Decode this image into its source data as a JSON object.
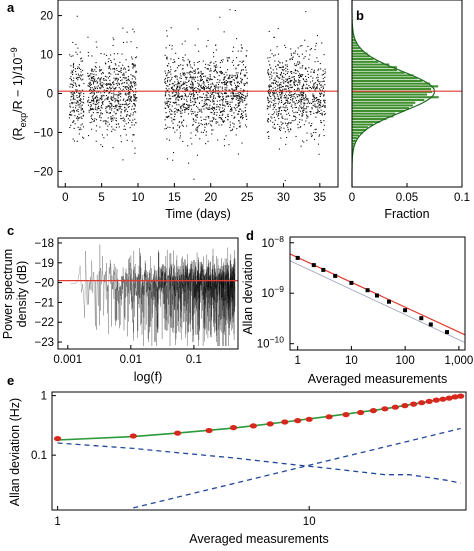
{
  "figure": {
    "panel_labels": [
      "a",
      "b",
      "c",
      "d",
      "e"
    ]
  },
  "colors": {
    "reference_line": "#e03a2f",
    "histogram": "#3f8f2e",
    "fit": "#2b9a3a",
    "points_e": "#d8281d",
    "dashed": "#24489a",
    "scatter": "#111111"
  },
  "chart_data": [
    {
      "panel": "a",
      "type": "scatter",
      "title": "",
      "xlabel": "Time (days)",
      "ylabel": "(R_exp/R − 1)/10⁻⁹",
      "ylabel_parts": [
        "(R",
        "exp",
        "/R − 1)/10",
        "−9"
      ],
      "xlim": [
        -1,
        37.5
      ],
      "ylim": [
        -24,
        24
      ],
      "xticks": [
        0,
        5,
        10,
        15,
        20,
        25,
        30,
        35
      ],
      "xtick_labels": [
        "0",
        "5",
        "10",
        "15",
        "20",
        "25",
        "30",
        "35"
      ],
      "yticks": [
        20,
        10,
        0,
        -10,
        -20
      ],
      "ytick_labels": [
        "20",
        "10",
        "0",
        "−10",
        "−20"
      ],
      "data_segments_days": [
        [
          0.5,
          2.5
        ],
        [
          3.0,
          9.8
        ],
        [
          13.6,
          25.0
        ],
        [
          27.7,
          35.7
        ]
      ],
      "points_per_day": 240,
      "distribution": {
        "mean": 0,
        "sd": 5
      },
      "reference_line_y": 0.6
    },
    {
      "panel": "b",
      "type": "bar",
      "orientation": "horizontal histogram",
      "xlabel": "Fraction",
      "xlim": [
        0,
        0.1
      ],
      "ylim": [
        -24,
        24
      ],
      "xticks": [
        0,
        0.05,
        0.1
      ],
      "xtick_labels": [
        "0",
        "0.05",
        "0.1"
      ],
      "bins": {
        "start": -21,
        "width": 0.7,
        "count": 60,
        "peak_fraction": 0.075,
        "sd": 5.2,
        "center": 0.5
      },
      "fit": "gaussian"
    },
    {
      "panel": "c",
      "type": "line",
      "xlabel": "log(f)",
      "ylabel": "Power spectrum density (dB)",
      "ylabel_lines": [
        "Power spectrum",
        "density (dB)"
      ],
      "xscale": "log",
      "xlim": [
        0.0007,
        0.5
      ],
      "ylim": [
        -23.35,
        -17.75
      ],
      "xticks": [
        0.001,
        0.01,
        0.1
      ],
      "xtick_labels": [
        "0.001",
        "0.01",
        "0.1"
      ],
      "yticks": [
        -18,
        -19,
        -20,
        -21,
        -22,
        -23
      ],
      "ytick_labels": [
        "−18",
        "−19",
        "−20",
        "−21",
        "−22",
        "−23"
      ],
      "mean_level_db": -19.9,
      "noise_floor_db": -23.2,
      "frequency_range": [
        0.0011,
        0.45
      ]
    },
    {
      "panel": "d",
      "type": "scatter",
      "xlabel": "Averaged measurements",
      "ylabel": "Allan deviation",
      "xscale": "log",
      "yscale": "log",
      "xlim": [
        0.72,
        1300
      ],
      "ylim": [
        7.5e-11,
        1.3e-08
      ],
      "xticks": [
        1,
        10,
        100,
        1000
      ],
      "xtick_labels": [
        "1",
        "10",
        "100",
        "1,000"
      ],
      "yticks": [
        1e-08,
        1e-09,
        1e-10
      ],
      "ytick_labels": [
        [
          "10",
          "−8"
        ],
        [
          "10",
          "−9"
        ],
        [
          "10",
          "−10"
        ]
      ],
      "x": [
        1,
        2,
        3,
        5,
        10,
        20,
        30,
        50,
        100,
        200,
        300,
        600
      ],
      "y": [
        5e-09,
        3.6e-09,
        2.9e-09,
        2.2e-09,
        1.6e-09,
        1.15e-09,
        9e-10,
        6.8e-10,
        4.6e-10,
        3.2e-10,
        2.4e-10,
        1.7e-10
      ],
      "fit_line": {
        "x": [
          0.72,
          1300
        ],
        "y": [
          6e-09,
          1.5e-10
        ]
      },
      "lower_line": {
        "x": [
          0.72,
          1300
        ],
        "y": [
          4.4e-09,
          1.05e-10
        ]
      }
    },
    {
      "panel": "e",
      "type": "line",
      "xlabel": "Averaged measurements",
      "ylabel": "Allan deviation (Hz)",
      "xscale": "log",
      "yscale": "log",
      "xlim": [
        0.95,
        42
      ],
      "ylim": [
        0.012,
        1.15
      ],
      "xticks": [
        1,
        10
      ],
      "xtick_labels": [
        "1",
        "10"
      ],
      "yticks": [
        1,
        0.1
      ],
      "ytick_labels": [
        "1",
        "0.1"
      ],
      "points": {
        "x": [
          1,
          2,
          3,
          4,
          5,
          6,
          7,
          8,
          9,
          10,
          12,
          14,
          16,
          18,
          20,
          22,
          24,
          26,
          28,
          30,
          32,
          34,
          36,
          38,
          40
        ],
        "y": [
          0.19,
          0.21,
          0.235,
          0.26,
          0.29,
          0.31,
          0.335,
          0.36,
          0.38,
          0.4,
          0.44,
          0.48,
          0.52,
          0.56,
          0.6,
          0.64,
          0.68,
          0.72,
          0.76,
          0.8,
          0.84,
          0.87,
          0.91,
          0.95,
          0.98
        ]
      },
      "fit_curve": {
        "x": [
          1,
          2,
          3,
          5,
          8,
          12,
          20,
          30,
          40
        ],
        "y": [
          0.18,
          0.205,
          0.235,
          0.285,
          0.36,
          0.45,
          0.6,
          0.8,
          0.98
        ]
      },
      "dashed_decreasing": {
        "x": [
          1,
          2,
          3,
          5,
          8,
          12,
          20,
          25,
          30,
          35,
          40
        ],
        "y": [
          0.16,
          0.13,
          0.11,
          0.09,
          0.072,
          0.06,
          0.047,
          0.047,
          0.042,
          0.038,
          0.034
        ]
      },
      "dashed_increasing": {
        "x": [
          2,
          40
        ],
        "y": [
          0.013,
          0.28
        ]
      }
    }
  ]
}
